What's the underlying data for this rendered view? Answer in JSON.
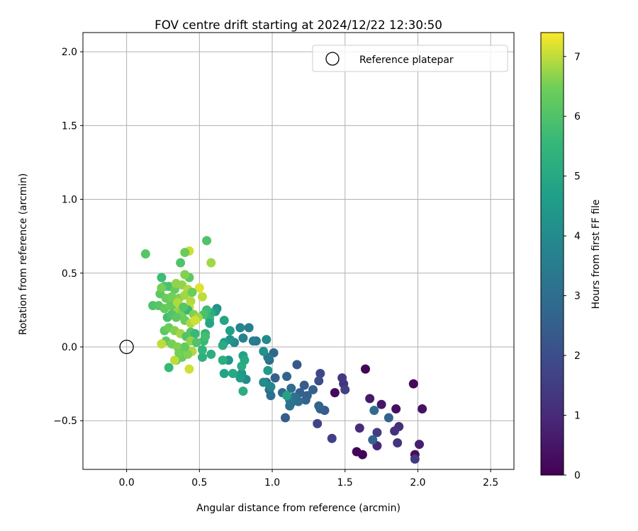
{
  "chart_data": {
    "type": "scatter",
    "title": "FOV centre drift starting at 2024/12/22 12:30:50",
    "xlabel": "Angular distance from reference (arcmin)",
    "ylabel": "Rotation from reference (arcmin)",
    "xlim": [
      -0.3,
      2.66
    ],
    "ylim": [
      -0.83,
      2.13
    ],
    "x_ticks": [
      0.0,
      0.5,
      1.0,
      1.5,
      2.0,
      2.5
    ],
    "x_tick_labels": [
      "0.0",
      "0.5",
      "1.0",
      "1.5",
      "2.0",
      "2.5"
    ],
    "y_ticks": [
      -0.5,
      0.0,
      0.5,
      1.0,
      1.5,
      2.0
    ],
    "y_tick_labels": [
      "−0.5",
      "0.0",
      "0.5",
      "1.0",
      "1.5",
      "2.0"
    ],
    "grid": true,
    "legend": {
      "placement": "top-right",
      "entries": [
        "Reference platepar"
      ]
    },
    "reference_point": {
      "x": 0.0,
      "y": 0.0,
      "label": "Reference platepar"
    },
    "colorbar": {
      "label": "Hours from first FF file",
      "colormap": "viridis",
      "range": [
        0,
        7.4
      ],
      "ticks": [
        0,
        1,
        2,
        3,
        4,
        5,
        6,
        7
      ],
      "tick_labels": [
        "0",
        "1",
        "2",
        "3",
        "4",
        "5",
        "6",
        "7"
      ]
    },
    "points": [
      {
        "x": 1.97,
        "y": -0.25,
        "c": 0.2
      },
      {
        "x": 1.58,
        "y": -0.71,
        "c": 0.1
      },
      {
        "x": 1.62,
        "y": -0.73,
        "c": 0.1
      },
      {
        "x": 1.64,
        "y": -0.15,
        "c": 0.1
      },
      {
        "x": 1.43,
        "y": -0.31,
        "c": 0.2
      },
      {
        "x": 1.85,
        "y": -0.42,
        "c": 0.3
      },
      {
        "x": 1.98,
        "y": -0.73,
        "c": 0.3
      },
      {
        "x": 2.03,
        "y": -0.42,
        "c": 0.4
      },
      {
        "x": 1.75,
        "y": -0.39,
        "c": 0.5
      },
      {
        "x": 1.67,
        "y": -0.35,
        "c": 0.6
      },
      {
        "x": 1.98,
        "y": -0.76,
        "c": 1.4
      },
      {
        "x": 2.01,
        "y": -0.66,
        "c": 0.7
      },
      {
        "x": 1.6,
        "y": -0.55,
        "c": 1.0
      },
      {
        "x": 1.72,
        "y": -0.67,
        "c": 0.9
      },
      {
        "x": 1.87,
        "y": -0.54,
        "c": 1.1
      },
      {
        "x": 1.84,
        "y": -0.57,
        "c": 1.2
      },
      {
        "x": 1.86,
        "y": -0.65,
        "c": 1.3
      },
      {
        "x": 1.72,
        "y": -0.58,
        "c": 1.5
      },
      {
        "x": 1.49,
        "y": -0.25,
        "c": 1.2
      },
      {
        "x": 1.48,
        "y": -0.21,
        "c": 1.4
      },
      {
        "x": 1.5,
        "y": -0.29,
        "c": 1.6
      },
      {
        "x": 1.8,
        "y": -0.48,
        "c": 2.7
      },
      {
        "x": 1.7,
        "y": -0.43,
        "c": 2.9
      },
      {
        "x": 1.69,
        "y": -0.63,
        "c": 2.6
      },
      {
        "x": 1.41,
        "y": -0.62,
        "c": 1.6
      },
      {
        "x": 1.31,
        "y": -0.52,
        "c": 1.7
      },
      {
        "x": 1.33,
        "y": -0.18,
        "c": 1.8
      },
      {
        "x": 1.32,
        "y": -0.23,
        "c": 2.0
      },
      {
        "x": 1.36,
        "y": -0.43,
        "c": 2.4
      },
      {
        "x": 1.33,
        "y": -0.42,
        "c": 2.5
      },
      {
        "x": 1.32,
        "y": -0.4,
        "c": 2.7
      },
      {
        "x": 1.17,
        "y": -0.12,
        "c": 2.3
      },
      {
        "x": 1.22,
        "y": -0.26,
        "c": 2.4
      },
      {
        "x": 1.28,
        "y": -0.29,
        "c": 2.6
      },
      {
        "x": 1.24,
        "y": -0.33,
        "c": 2.5
      },
      {
        "x": 1.19,
        "y": -0.31,
        "c": 2.6
      },
      {
        "x": 1.23,
        "y": -0.36,
        "c": 2.7
      },
      {
        "x": 1.16,
        "y": -0.34,
        "c": 2.8
      },
      {
        "x": 1.18,
        "y": -0.37,
        "c": 3.0
      },
      {
        "x": 1.13,
        "y": -0.38,
        "c": 3.1
      },
      {
        "x": 1.09,
        "y": -0.48,
        "c": 2.4
      },
      {
        "x": 1.1,
        "y": -0.2,
        "c": 2.7
      },
      {
        "x": 1.02,
        "y": -0.21,
        "c": 2.5
      },
      {
        "x": 1.13,
        "y": -0.28,
        "c": 2.9
      },
      {
        "x": 1.07,
        "y": -0.31,
        "c": 2.8
      },
      {
        "x": 1.15,
        "y": -0.34,
        "c": 3.1
      },
      {
        "x": 1.12,
        "y": -0.36,
        "c": 3.3
      },
      {
        "x": 1.12,
        "y": -0.4,
        "c": 3.2
      },
      {
        "x": 1.01,
        "y": -0.04,
        "c": 2.8
      },
      {
        "x": 0.98,
        "y": -0.09,
        "c": 3.0
      },
      {
        "x": 0.97,
        "y": -0.07,
        "c": 3.3
      },
      {
        "x": 0.96,
        "y": -0.24,
        "c": 3.2
      },
      {
        "x": 0.98,
        "y": -0.29,
        "c": 3.1
      },
      {
        "x": 0.99,
        "y": -0.33,
        "c": 3.0
      },
      {
        "x": 1.1,
        "y": -0.33,
        "c": 4.8
      },
      {
        "x": 0.96,
        "y": 0.05,
        "c": 4.0
      },
      {
        "x": 0.94,
        "y": -0.03,
        "c": 4.2
      },
      {
        "x": 0.97,
        "y": -0.16,
        "c": 4.5
      },
      {
        "x": 0.94,
        "y": -0.24,
        "c": 4.0
      },
      {
        "x": 0.99,
        "y": -0.27,
        "c": 3.8
      },
      {
        "x": 0.89,
        "y": 0.04,
        "c": 3.4
      },
      {
        "x": 0.87,
        "y": 0.04,
        "c": 3.5
      },
      {
        "x": 0.84,
        "y": 0.13,
        "c": 3.6
      },
      {
        "x": 0.8,
        "y": 0.06,
        "c": 3.7
      },
      {
        "x": 0.78,
        "y": 0.13,
        "c": 3.8
      },
      {
        "x": 0.82,
        "y": -0.22,
        "c": 4.0
      },
      {
        "x": 0.79,
        "y": -0.18,
        "c": 4.4
      },
      {
        "x": 0.78,
        "y": -0.21,
        "c": 4.6
      },
      {
        "x": 0.8,
        "y": -0.06,
        "c": 4.8
      },
      {
        "x": 0.81,
        "y": -0.09,
        "c": 5.0
      },
      {
        "x": 0.79,
        "y": -0.13,
        "c": 5.1
      },
      {
        "x": 0.8,
        "y": -0.3,
        "c": 5.2
      },
      {
        "x": 0.74,
        "y": 0.03,
        "c": 3.9
      },
      {
        "x": 0.71,
        "y": 0.05,
        "c": 4.3
      },
      {
        "x": 0.71,
        "y": 0.11,
        "c": 4.7
      },
      {
        "x": 0.7,
        "y": -0.09,
        "c": 4.4
      },
      {
        "x": 0.73,
        "y": -0.18,
        "c": 5.0
      },
      {
        "x": 0.67,
        "y": 0.18,
        "c": 4.9
      },
      {
        "x": 0.67,
        "y": 0.03,
        "c": 4.6
      },
      {
        "x": 0.66,
        "y": 0.01,
        "c": 5.1
      },
      {
        "x": 0.66,
        "y": -0.09,
        "c": 5.2
      },
      {
        "x": 0.67,
        "y": -0.18,
        "c": 4.8
      },
      {
        "x": 0.62,
        "y": 0.26,
        "c": 4.2
      },
      {
        "x": 0.61,
        "y": 0.24,
        "c": 4.5
      },
      {
        "x": 0.58,
        "y": 0.23,
        "c": 5.1
      },
      {
        "x": 0.57,
        "y": 0.19,
        "c": 5.5
      },
      {
        "x": 0.57,
        "y": 0.16,
        "c": 4.9
      },
      {
        "x": 0.58,
        "y": -0.05,
        "c": 5.2
      },
      {
        "x": 0.54,
        "y": 0.09,
        "c": 5.4
      },
      {
        "x": 0.53,
        "y": 0.04,
        "c": 5.6
      },
      {
        "x": 0.54,
        "y": 0.07,
        "c": 5.8
      },
      {
        "x": 0.52,
        "y": -0.07,
        "c": 5.3
      },
      {
        "x": 0.52,
        "y": -0.02,
        "c": 5.5
      },
      {
        "x": 0.55,
        "y": 0.25,
        "c": 5.7
      },
      {
        "x": 0.53,
        "y": 0.22,
        "c": 5.9
      },
      {
        "x": 0.55,
        "y": 0.72,
        "c": 6.0
      },
      {
        "x": 0.58,
        "y": 0.57,
        "c": 6.8
      },
      {
        "x": 0.13,
        "y": 0.63,
        "c": 6.1
      },
      {
        "x": 0.43,
        "y": 0.65,
        "c": 7.1
      },
      {
        "x": 0.4,
        "y": 0.64,
        "c": 6.4
      },
      {
        "x": 0.37,
        "y": 0.57,
        "c": 6.0
      },
      {
        "x": 0.43,
        "y": 0.47,
        "c": 6.2
      },
      {
        "x": 0.4,
        "y": 0.49,
        "c": 6.6
      },
      {
        "x": 0.24,
        "y": 0.47,
        "c": 5.7
      },
      {
        "x": 0.26,
        "y": 0.41,
        "c": 6.0
      },
      {
        "x": 0.29,
        "y": 0.41,
        "c": 5.9
      },
      {
        "x": 0.33,
        "y": 0.39,
        "c": 6.3
      },
      {
        "x": 0.38,
        "y": 0.42,
        "c": 6.7
      },
      {
        "x": 0.42,
        "y": 0.39,
        "c": 6.9
      },
      {
        "x": 0.5,
        "y": 0.4,
        "c": 7.2
      },
      {
        "x": 0.52,
        "y": 0.34,
        "c": 7.0
      },
      {
        "x": 0.23,
        "y": 0.36,
        "c": 6.2
      },
      {
        "x": 0.27,
        "y": 0.33,
        "c": 6.4
      },
      {
        "x": 0.31,
        "y": 0.34,
        "c": 6.5
      },
      {
        "x": 0.36,
        "y": 0.33,
        "c": 6.6
      },
      {
        "x": 0.4,
        "y": 0.35,
        "c": 6.8
      },
      {
        "x": 0.44,
        "y": 0.31,
        "c": 6.9
      },
      {
        "x": 0.43,
        "y": 0.27,
        "c": 7.0
      },
      {
        "x": 0.18,
        "y": 0.28,
        "c": 6.0
      },
      {
        "x": 0.22,
        "y": 0.28,
        "c": 6.1
      },
      {
        "x": 0.26,
        "y": 0.26,
        "c": 6.3
      },
      {
        "x": 0.3,
        "y": 0.28,
        "c": 6.4
      },
      {
        "x": 0.33,
        "y": 0.26,
        "c": 7.2
      },
      {
        "x": 0.36,
        "y": 0.24,
        "c": 6.7
      },
      {
        "x": 0.38,
        "y": 0.22,
        "c": 6.5
      },
      {
        "x": 0.42,
        "y": 0.25,
        "c": 5.6
      },
      {
        "x": 0.46,
        "y": 0.22,
        "c": 6.6
      },
      {
        "x": 0.49,
        "y": 0.2,
        "c": 6.8
      },
      {
        "x": 0.28,
        "y": 0.2,
        "c": 5.8
      },
      {
        "x": 0.31,
        "y": 0.22,
        "c": 6.0
      },
      {
        "x": 0.34,
        "y": 0.2,
        "c": 6.2
      },
      {
        "x": 0.4,
        "y": 0.18,
        "c": 6.4
      },
      {
        "x": 0.44,
        "y": 0.16,
        "c": 6.9
      },
      {
        "x": 0.47,
        "y": 0.18,
        "c": 7.1
      },
      {
        "x": 0.26,
        "y": 0.11,
        "c": 6.2
      },
      {
        "x": 0.29,
        "y": 0.13,
        "c": 6.4
      },
      {
        "x": 0.33,
        "y": 0.11,
        "c": 6.6
      },
      {
        "x": 0.37,
        "y": 0.09,
        "c": 6.8
      },
      {
        "x": 0.41,
        "y": 0.07,
        "c": 6.0
      },
      {
        "x": 0.44,
        "y": 0.1,
        "c": 6.1
      },
      {
        "x": 0.47,
        "y": 0.09,
        "c": 5.6
      },
      {
        "x": 0.27,
        "y": 0.04,
        "c": 6.3
      },
      {
        "x": 0.31,
        "y": 0.02,
        "c": 6.5
      },
      {
        "x": 0.35,
        "y": 0.0,
        "c": 6.6
      },
      {
        "x": 0.38,
        "y": -0.02,
        "c": 6.7
      },
      {
        "x": 0.41,
        "y": -0.04,
        "c": 6.8
      },
      {
        "x": 0.45,
        "y": -0.03,
        "c": 6.9
      },
      {
        "x": 0.24,
        "y": 0.02,
        "c": 7.0
      },
      {
        "x": 0.34,
        "y": -0.09,
        "c": 6.2
      },
      {
        "x": 0.38,
        "y": -0.07,
        "c": 6.4
      },
      {
        "x": 0.42,
        "y": -0.05,
        "c": 6.6
      },
      {
        "x": 0.43,
        "y": -0.15,
        "c": 7.1
      },
      {
        "x": 0.29,
        "y": -0.14,
        "c": 5.6
      },
      {
        "x": 0.33,
        "y": -0.09,
        "c": 7.0
      },
      {
        "x": 0.36,
        "y": -0.04,
        "c": 6.5
      },
      {
        "x": 0.4,
        "y": 0.0,
        "c": 6.3
      },
      {
        "x": 0.44,
        "y": 0.04,
        "c": 6.7
      },
      {
        "x": 0.48,
        "y": 0.03,
        "c": 6.0
      },
      {
        "x": 0.31,
        "y": 0.28,
        "c": 6.3
      },
      {
        "x": 0.35,
        "y": 0.3,
        "c": 6.9
      },
      {
        "x": 0.39,
        "y": 0.27,
        "c": 6.1
      },
      {
        "x": 0.24,
        "y": 0.4,
        "c": 6.5
      },
      {
        "x": 0.34,
        "y": 0.43,
        "c": 6.7
      },
      {
        "x": 0.45,
        "y": 0.37,
        "c": 6.4
      }
    ]
  }
}
